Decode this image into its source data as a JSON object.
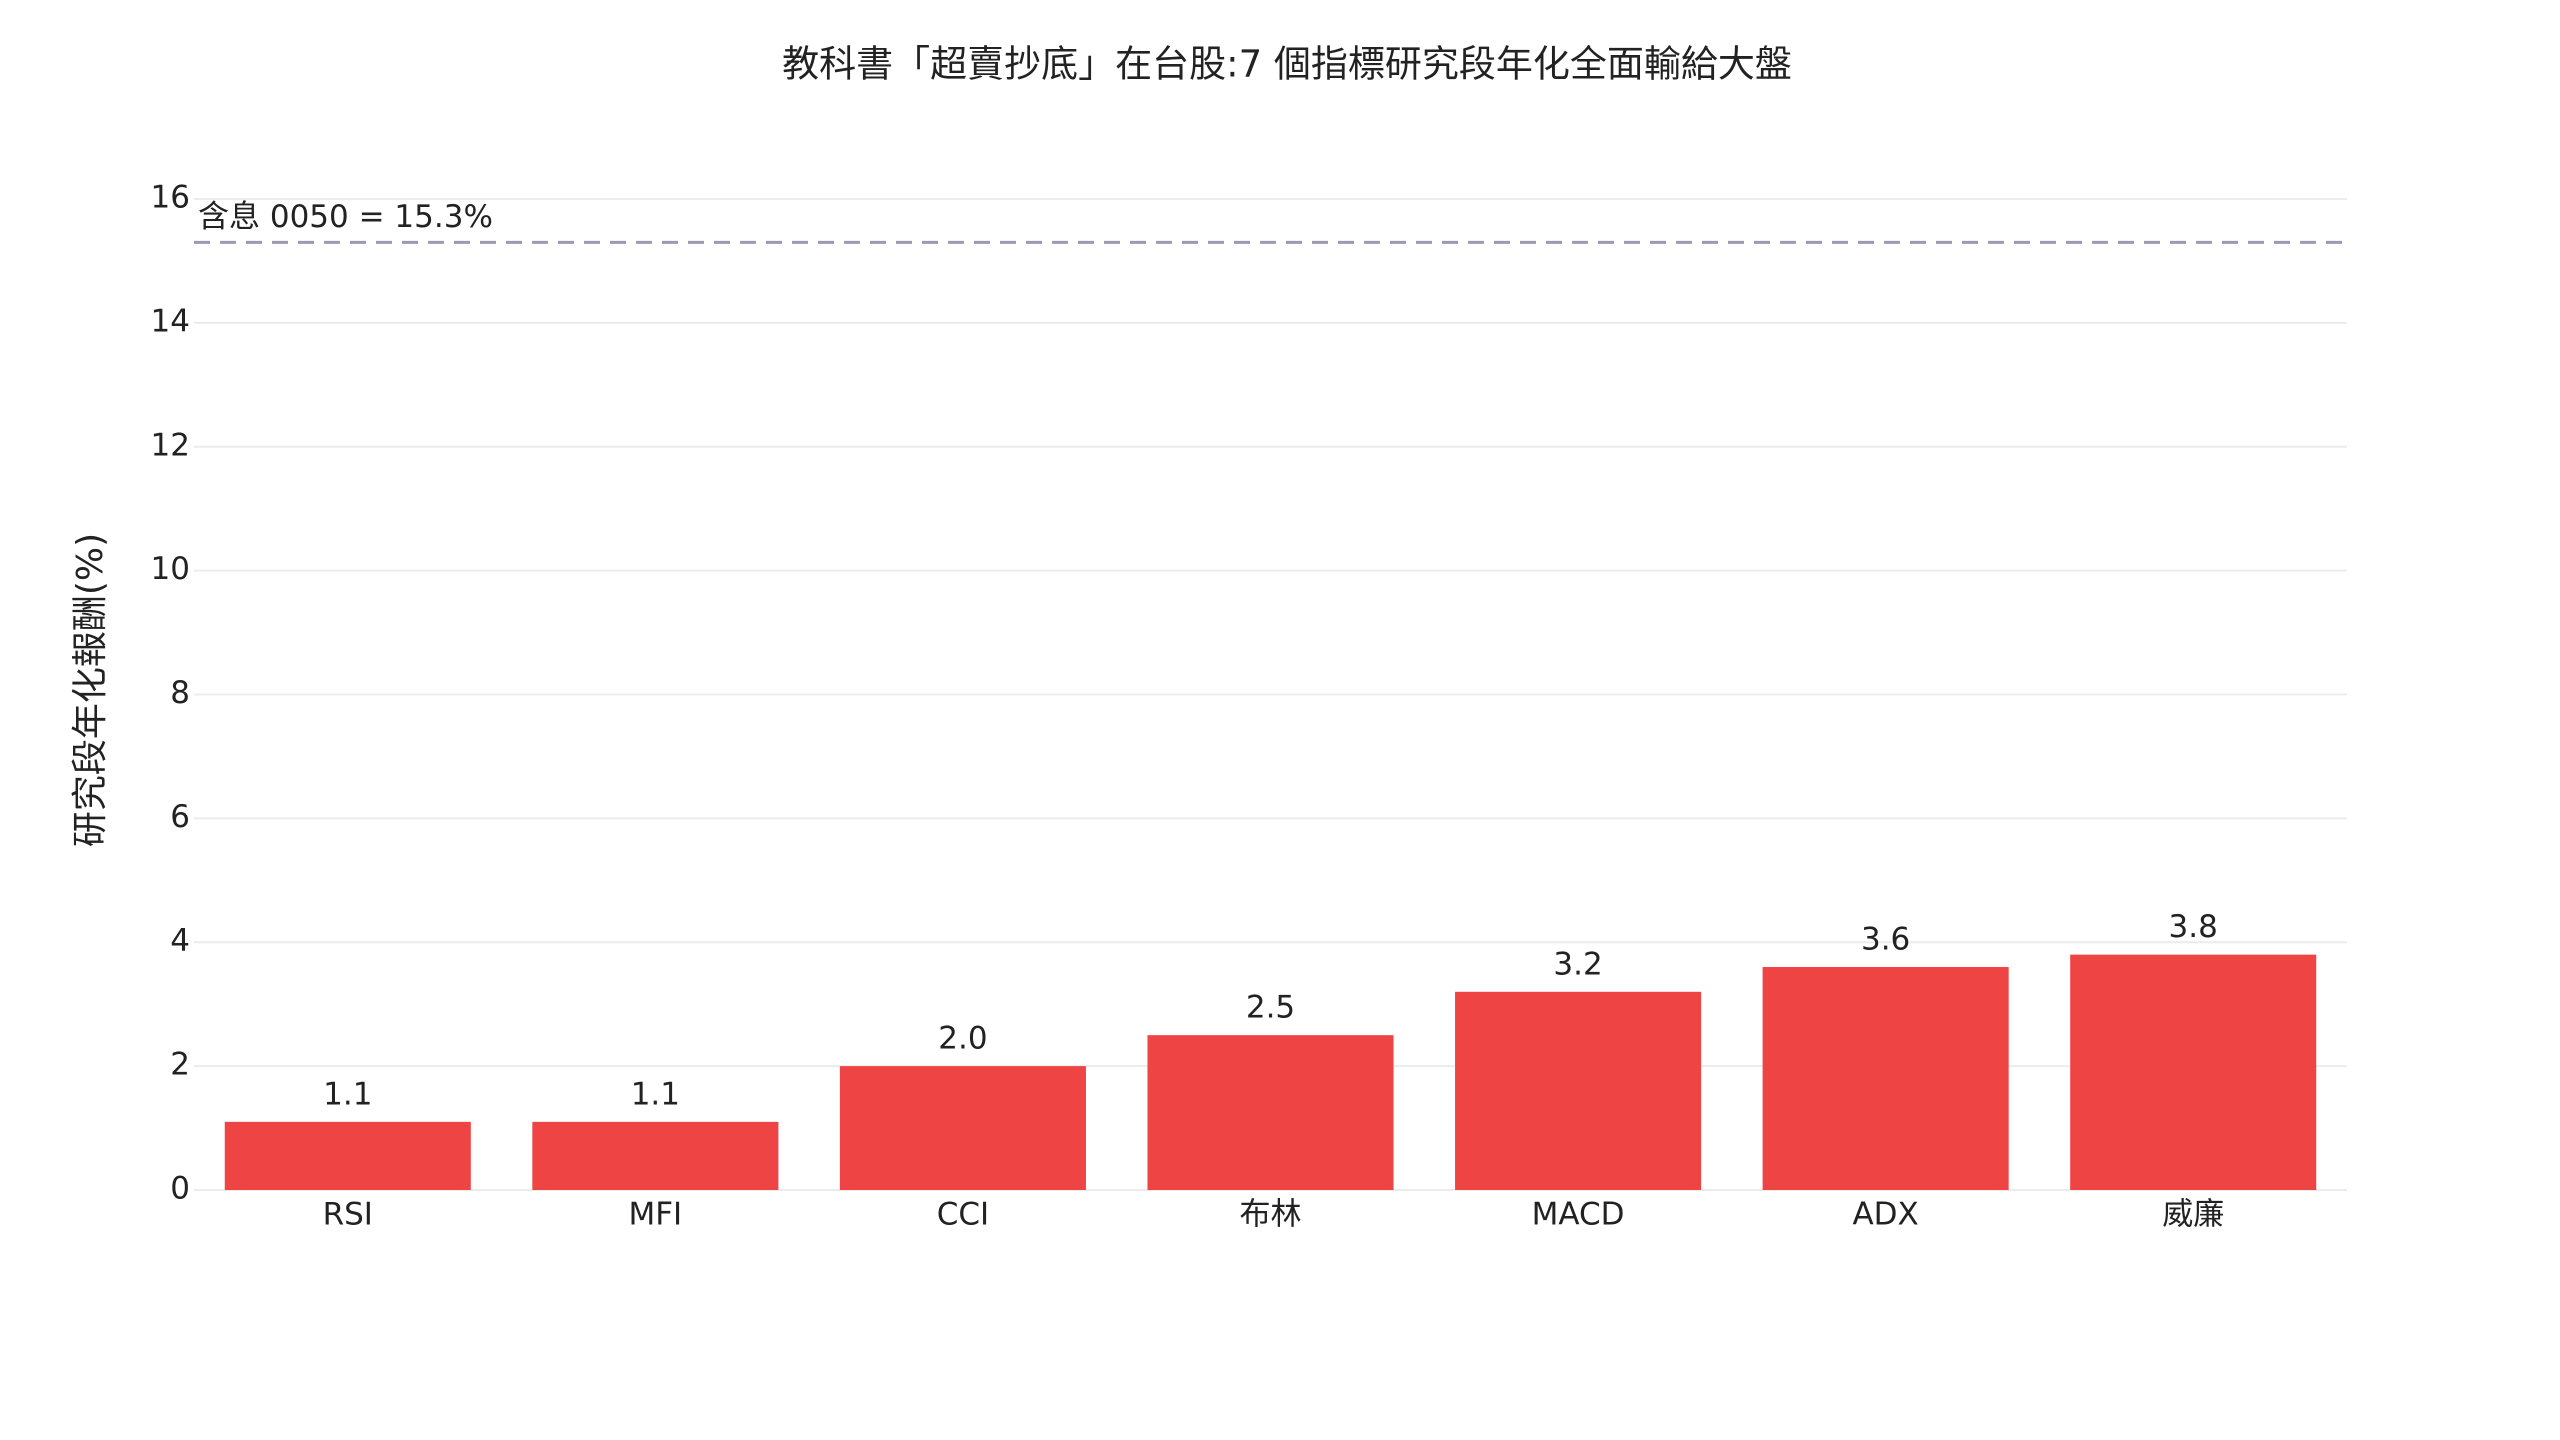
{
  "chart_data": {
    "type": "bar",
    "title": "教科書「超賣抄底」在台股:7 個指標研究段年化全面輸給大盤",
    "y_label": "研究段年化報酬(%)",
    "categories": [
      "RSI",
      "MFI",
      "CCI",
      "布林",
      "MACD",
      "ADX",
      "威廉"
    ],
    "values": [
      1.1,
      1.1,
      2.0,
      2.5,
      3.2,
      3.6,
      3.8
    ],
    "value_labels": [
      "1.1",
      "1.1",
      "2.0",
      "2.5",
      "3.2",
      "3.6",
      "3.8"
    ],
    "color": "#ef4444",
    "ylim": [
      0,
      16
    ],
    "yticks": [
      0,
      2,
      4,
      6,
      8,
      10,
      12,
      14,
      16
    ],
    "grid": true,
    "reference_line": {
      "value": 15.3,
      "label": "含息 0050 = 15.3%",
      "color": "#9a9ab0"
    }
  }
}
